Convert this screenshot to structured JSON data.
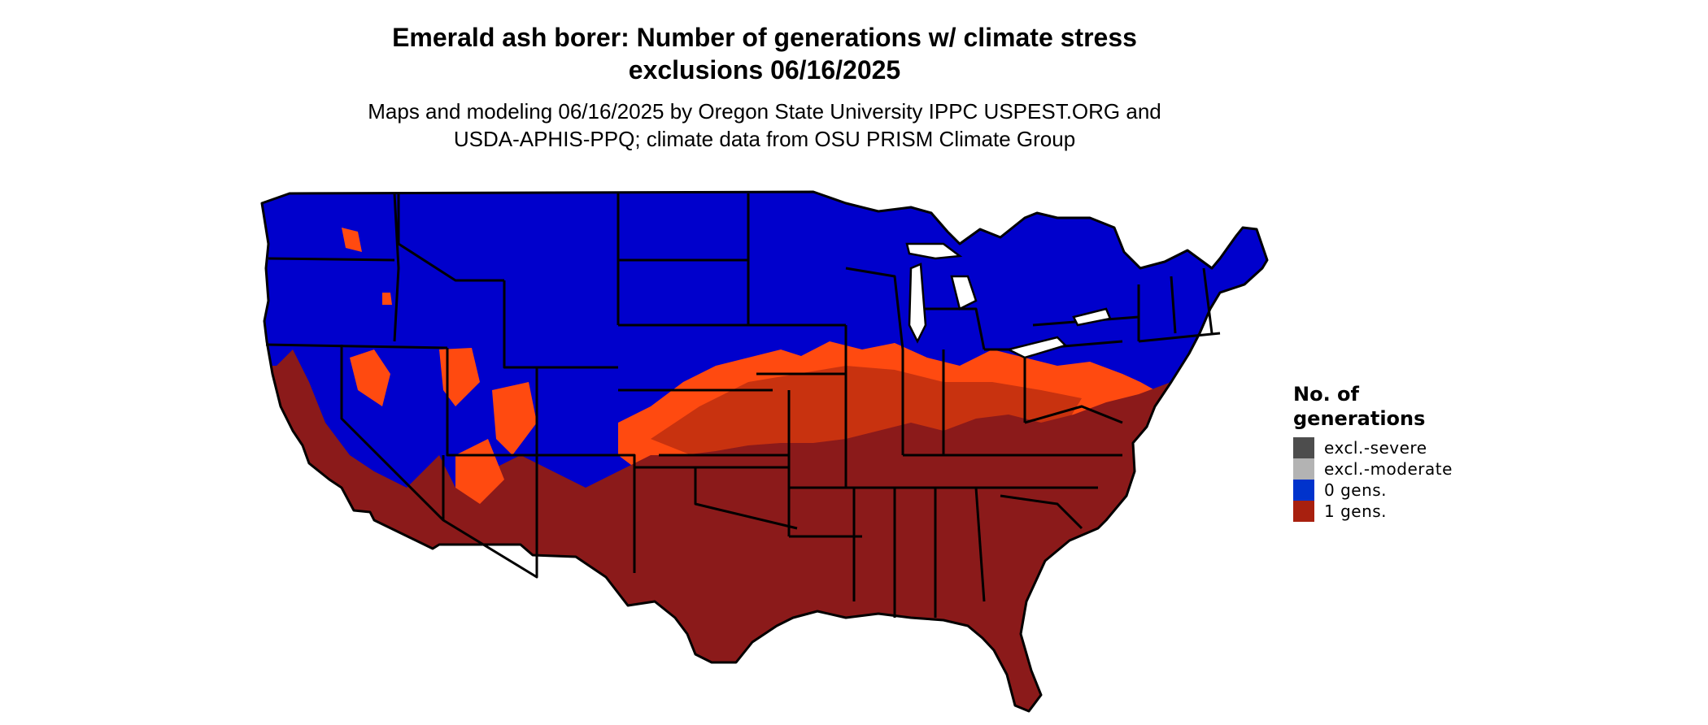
{
  "title": {
    "line1": "Emerald ash borer: Number of generations w/ climate stress",
    "line2": "exclusions 06/16/2025"
  },
  "subtitle": {
    "line1": "Maps and modeling 06/16/2025 by Oregon State University IPPC USPEST.ORG and",
    "line2": "USDA-APHIS-PPQ; climate data from OSU PRISM Climate Group"
  },
  "legend": {
    "title_line1": "No. of",
    "title_line2": "generations",
    "items": [
      {
        "label": "excl.-severe",
        "color": "#4d4d4d"
      },
      {
        "label": "excl.-moderate",
        "color": "#b3b3b3"
      },
      {
        "label": "0 gens.",
        "color": "#0033cc"
      },
      {
        "label": "1 gens.",
        "color": "#a8200f"
      }
    ]
  },
  "colors": {
    "zero_gens": "#0000cc",
    "one_gen": "#8b1a1a",
    "partial": "#ff4a10",
    "partial_dark": "#c8320f",
    "border": "#000000"
  }
}
